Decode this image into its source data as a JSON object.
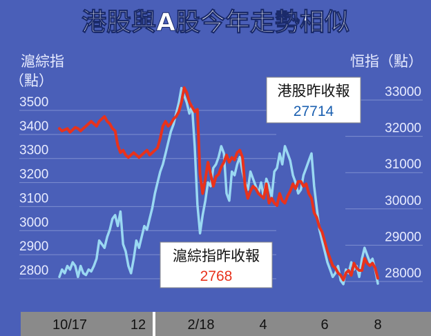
{
  "title": "港股與A股今年走勢相似",
  "colors": {
    "background": "#4a5fb8",
    "title_bg": "#4a5fb8",
    "title_text": "#ffffff",
    "left_axis_text": "#e8ecff",
    "hsi_line": "#9ad8f2",
    "shci_line": "#e8321c",
    "gridline": "#7f8fd0",
    "xaxis_bg": "#8a8a8a",
    "callout_bg": "#ffffff",
    "callout_text": "#111111",
    "hsi_value_color": "#1a5fb0",
    "shci_value_color": "#e8321c"
  },
  "left_axis": {
    "label_line1": "滬綜指",
    "label_line2": "（點）"
  },
  "right_axis": {
    "label": "恒指（點）"
  },
  "callouts": {
    "hsi": {
      "label": "港股昨收報",
      "value": "27714"
    },
    "shci": {
      "label": "滬綜指昨收報",
      "value": "2768"
    }
  },
  "chart_data": {
    "type": "line",
    "x_ticks": [
      "10/17",
      "12",
      "2/18",
      "4",
      "6",
      "8"
    ],
    "left_ylim": [
      2700,
      3600
    ],
    "left_ticks": [
      "2800",
      "2900",
      "3000",
      "3100",
      "3200",
      "3300",
      "3400",
      "3500"
    ],
    "right_ylim": [
      27000,
      34000
    ],
    "right_ticks": [
      "28000",
      "29000",
      "30000",
      "31000",
      "32000",
      "33000"
    ],
    "grid": true,
    "series": [
      {
        "name": "滬綜指",
        "axis": "left",
        "values": [
          3390,
          3380,
          3385,
          3390,
          3375,
          3385,
          3395,
          3390,
          3380,
          3390,
          3400,
          3410,
          3420,
          3410,
          3400,
          3420,
          3430,
          3440,
          3420,
          3410,
          3390,
          3380,
          3320,
          3290,
          3300,
          3280,
          3270,
          3280,
          3290,
          3280,
          3270,
          3280,
          3290,
          3300,
          3280,
          3290,
          3300,
          3310,
          3350,
          3400,
          3420,
          3400,
          3410,
          3430,
          3440,
          3460,
          3500,
          3560,
          3540,
          3500,
          3480,
          3460,
          3470,
          3200,
          3120,
          3180,
          3250,
          3200,
          3150,
          3190,
          3200,
          3230,
          3250,
          3280,
          3250,
          3270,
          3260,
          3290,
          3300,
          3270,
          3150,
          3100,
          3130,
          3150,
          3140,
          3120,
          3110,
          3100,
          3160,
          3080,
          3100,
          3080,
          3070,
          3120,
          3090,
          3080,
          3110,
          3130,
          3160,
          3140,
          3170,
          3170,
          3150,
          3160,
          3120,
          3100,
          3040,
          3020,
          2980,
          2960,
          2920,
          2880,
          2850,
          2820,
          2810,
          2790,
          2780,
          2760,
          2790,
          2800,
          2780,
          2830,
          2810,
          2800,
          2800,
          2850,
          2830,
          2820,
          2830,
          2810,
          2768
        ]
      },
      {
        "name": "恒指",
        "axis": "right",
        "values": [
          27900,
          28100,
          28000,
          28200,
          28100,
          28300,
          28200,
          27900,
          28200,
          28000,
          27950,
          28100,
          28050,
          28200,
          28400,
          28900,
          28800,
          28700,
          29000,
          29200,
          29500,
          29600,
          29300,
          29700,
          28800,
          28600,
          28200,
          28000,
          28400,
          28900,
          28700,
          29000,
          29300,
          29200,
          29500,
          29800,
          30200,
          30500,
          30800,
          31000,
          31300,
          31600,
          31900,
          32100,
          32400,
          32700,
          33100,
          32900,
          32700,
          32400,
          32600,
          31500,
          29900,
          29100,
          29600,
          30000,
          30500,
          30400,
          30900,
          31000,
          31200,
          31500,
          31300,
          30200,
          30000,
          30800,
          30700,
          31000,
          31200,
          30800,
          30500,
          30300,
          30800,
          30600,
          30400,
          30200,
          30500,
          30100,
          30600,
          30400,
          30100,
          30800,
          30900,
          31300,
          31000,
          31500,
          31300,
          31100,
          30700,
          30500,
          30200,
          30300,
          30700,
          30900,
          31100,
          31300,
          30400,
          29800,
          29200,
          28900,
          28600,
          28300,
          28100,
          27900,
          28000,
          28200,
          27800,
          27700,
          28100,
          28000,
          28300,
          28100,
          28200,
          27900,
          28400,
          28700,
          28500,
          28300,
          28400,
          28100,
          27714
        ]
      }
    ]
  }
}
